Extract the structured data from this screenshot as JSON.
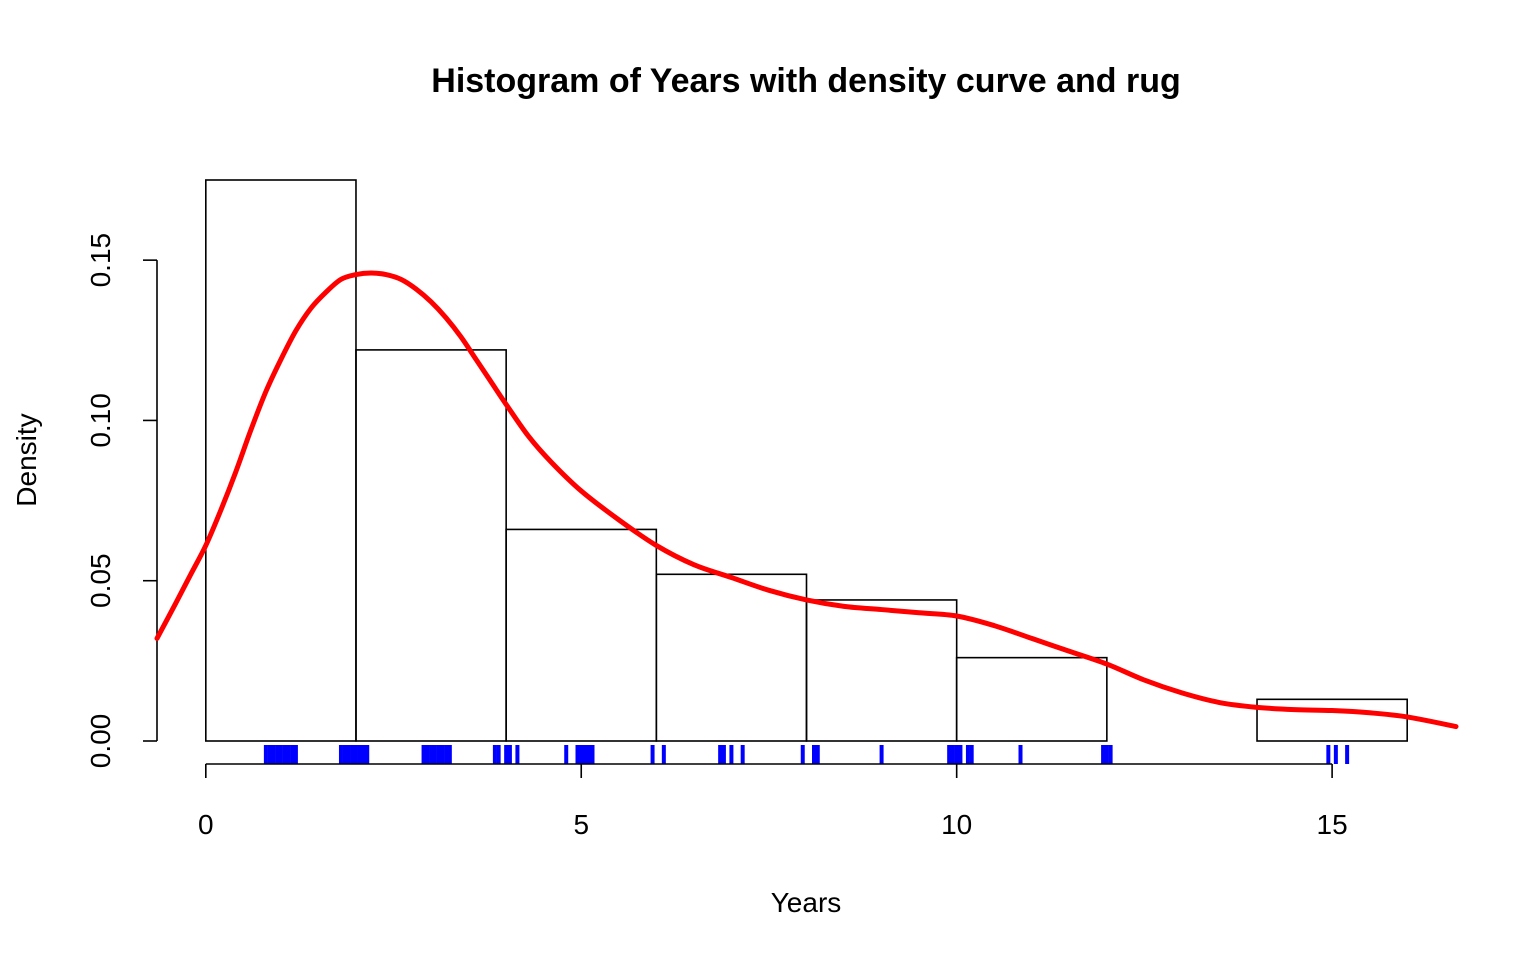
{
  "chart_data": {
    "type": "bar",
    "title": "Histogram of Years with density curve and rug",
    "xlabel": "Years",
    "ylabel": "Density",
    "xlim": [
      -0.65,
      16.65
    ],
    "ylim": [
      0,
      0.175
    ],
    "x_ticks": [
      0,
      5,
      10,
      15
    ],
    "x_tick_labels": [
      "0",
      "5",
      "10",
      "15"
    ],
    "y_ticks": [
      0,
      0.05,
      0.1,
      0.15
    ],
    "y_tick_labels": [
      "0.00",
      "0.05",
      "0.10",
      "0.15"
    ],
    "histogram": {
      "breaks": [
        0,
        2,
        4,
        6,
        8,
        10,
        12,
        14,
        16
      ],
      "density": [
        0.175,
        0.122,
        0.066,
        0.052,
        0.044,
        0.026,
        0,
        0.013
      ]
    },
    "density_curve": {
      "color": "#ff0000",
      "x": [
        -0.65,
        -0.4,
        -0.2,
        0,
        0.2,
        0.4,
        0.6,
        0.8,
        1.0,
        1.2,
        1.4,
        1.6,
        1.8,
        2.0,
        2.2,
        2.4,
        2.6,
        2.8,
        3.0,
        3.2,
        3.4,
        3.6,
        3.8,
        4.0,
        4.3,
        4.6,
        5.0,
        5.5,
        6.0,
        6.5,
        7.0,
        7.5,
        8.0,
        8.5,
        9.0,
        9.5,
        10.0,
        10.5,
        11.0,
        11.5,
        12.0,
        12.5,
        13.0,
        13.5,
        14.0,
        14.5,
        15.0,
        15.5,
        16.0,
        16.65
      ],
      "y": [
        0.032,
        0.043,
        0.052,
        0.061,
        0.072,
        0.084,
        0.097,
        0.109,
        0.119,
        0.128,
        0.135,
        0.14,
        0.144,
        0.1455,
        0.146,
        0.1455,
        0.144,
        0.141,
        0.137,
        0.132,
        0.126,
        0.119,
        0.112,
        0.105,
        0.095,
        0.087,
        0.078,
        0.069,
        0.061,
        0.055,
        0.051,
        0.047,
        0.044,
        0.042,
        0.041,
        0.04,
        0.039,
        0.036,
        0.032,
        0.028,
        0.024,
        0.019,
        0.015,
        0.012,
        0.0105,
        0.0098,
        0.0095,
        0.0088,
        0.0075,
        0.0045
      ]
    },
    "rug": {
      "color": "#0000ff",
      "values": [
        0.8,
        0.85,
        0.9,
        0.95,
        1.0,
        1.05,
        1.1,
        1.15,
        1.2,
        1.8,
        1.85,
        1.9,
        1.95,
        2.0,
        2.05,
        2.1,
        2.15,
        2.9,
        2.95,
        3.0,
        3.05,
        3.1,
        3.15,
        3.2,
        3.25,
        3.85,
        3.9,
        4.0,
        4.05,
        4.15,
        4.8,
        4.95,
        5.0,
        5.05,
        5.1,
        5.15,
        5.95,
        6.1,
        6.85,
        6.9,
        7.0,
        7.15,
        7.95,
        8.1,
        8.15,
        9.0,
        9.9,
        9.95,
        10.0,
        10.05,
        10.15,
        10.2,
        10.85,
        11.95,
        12.0,
        12.05,
        14.95,
        15.05,
        15.2
      ]
    }
  }
}
